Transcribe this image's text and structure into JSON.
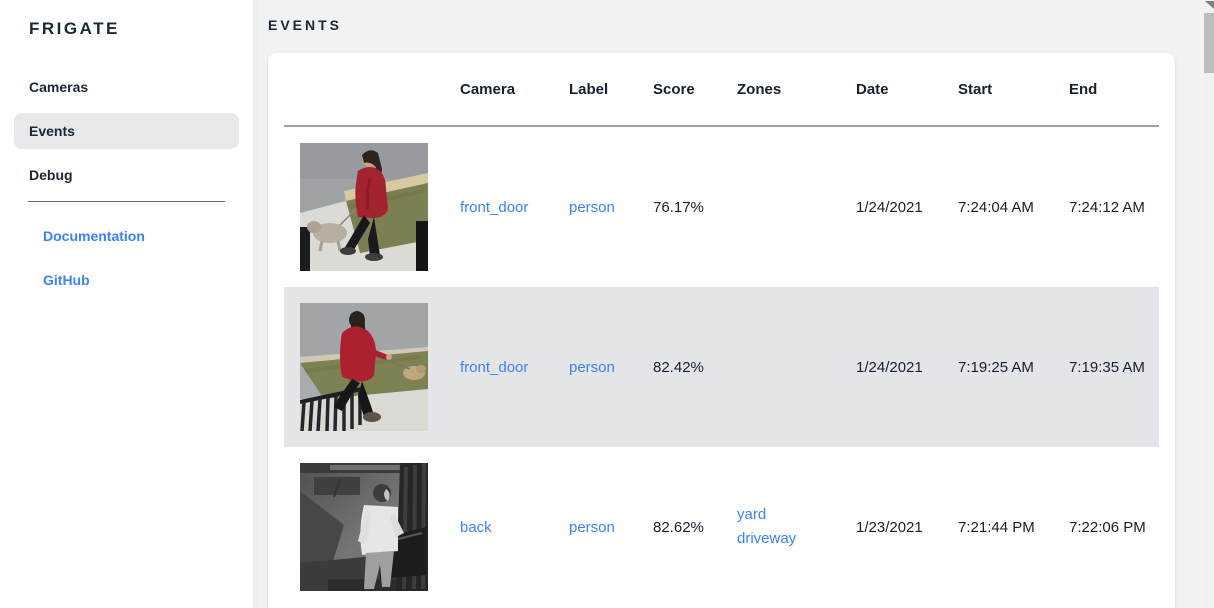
{
  "app": {
    "title": "FRIGATE"
  },
  "sidebar": {
    "items": [
      {
        "label": "Cameras",
        "active": false
      },
      {
        "label": "Events",
        "active": true
      },
      {
        "label": "Debug",
        "active": false
      }
    ],
    "links": [
      {
        "label": "Documentation"
      },
      {
        "label": "GitHub"
      }
    ]
  },
  "page": {
    "title": "EVENTS"
  },
  "table": {
    "columns": [
      "Camera",
      "Label",
      "Score",
      "Zones",
      "Date",
      "Start",
      "End"
    ],
    "rows": [
      {
        "camera": "front_door",
        "label": "person",
        "score": "76.17%",
        "zones": [],
        "date": "1/24/2021",
        "start": "7:24:04 AM",
        "end": "7:24:12 AM",
        "selected": false,
        "thumbnail": "red-coat-dog"
      },
      {
        "camera": "front_door",
        "label": "person",
        "score": "82.42%",
        "zones": [],
        "date": "1/24/2021",
        "start": "7:19:25 AM",
        "end": "7:19:35 AM",
        "selected": true,
        "thumbnail": "red-hoodie-dog"
      },
      {
        "camera": "back",
        "label": "person",
        "score": "82.62%",
        "zones": [
          "yard",
          "driveway"
        ],
        "date": "1/23/2021",
        "start": "7:21:44 PM",
        "end": "7:22:06 PM",
        "selected": false,
        "thumbnail": "night-infrared"
      }
    ]
  },
  "colors": {
    "accent_link": "#3b82f6",
    "selected_row": "#e3e5e8",
    "text_dark": "#16202e",
    "scrollbar_thumb": "#bcbcbc"
  }
}
